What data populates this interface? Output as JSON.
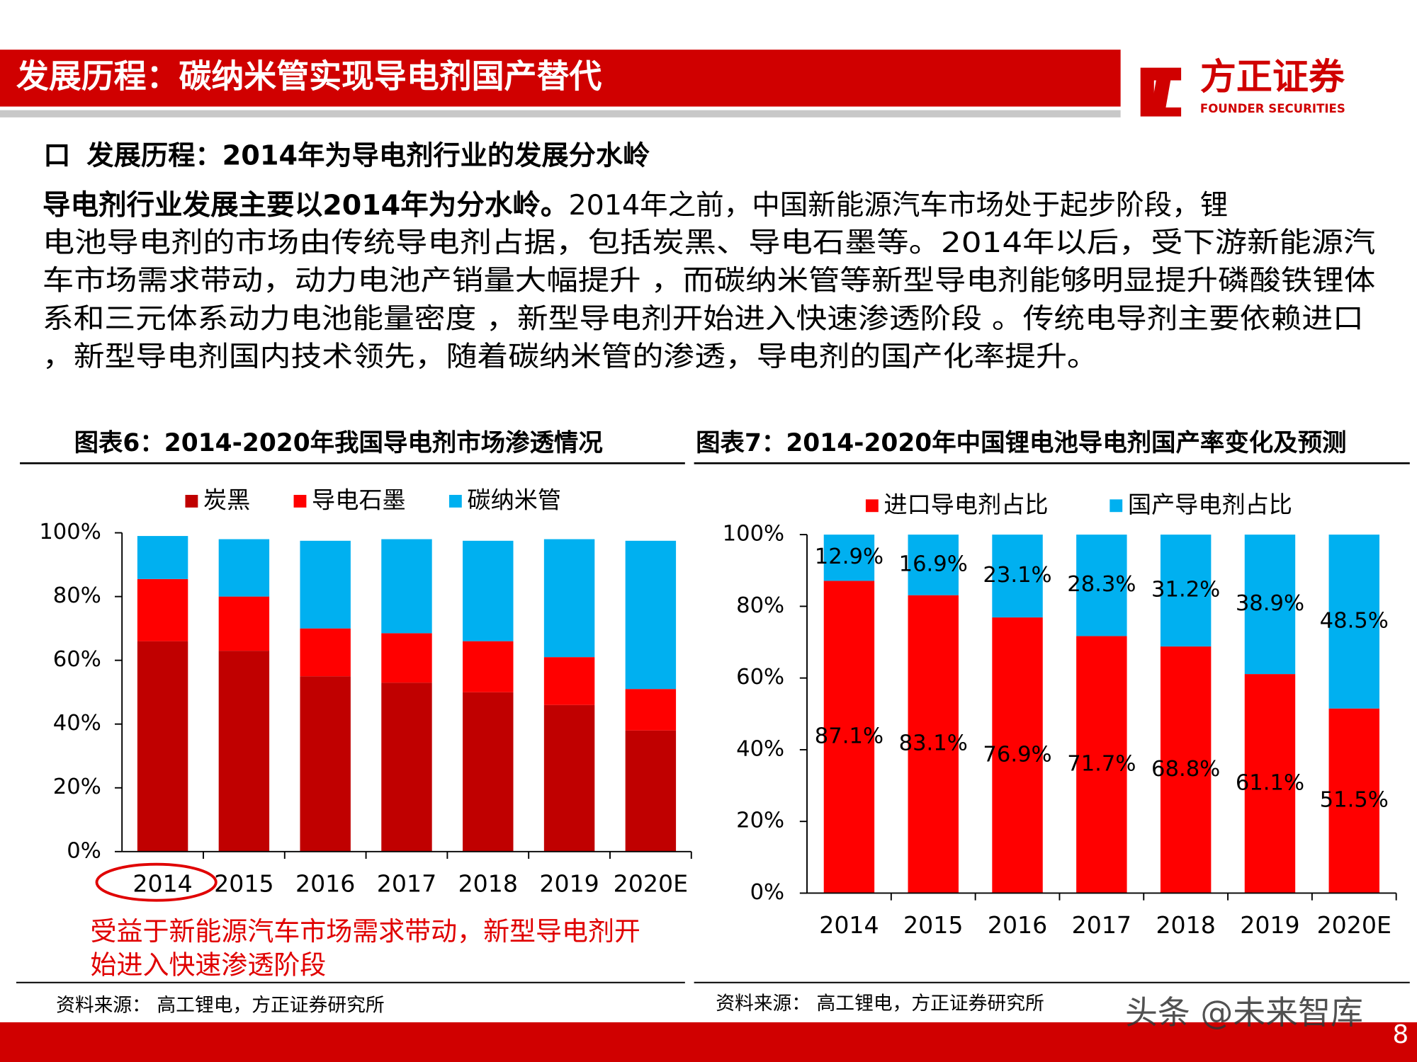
{
  "header": {
    "title": "发展历程：碳纳米管实现导电剂国产替代",
    "logo_cn": "方正证券",
    "logo_en": "FOUNDER SECURITIES"
  },
  "section": {
    "marker": "口",
    "heading": "发展历程：2014年为导电剂行业的发展分水岭"
  },
  "body": {
    "lead": "导电剂行业发展主要以2014年为分水岭。",
    "lines": [
      "2014年之前，中国新能源汽车市场处于起步阶段，锂",
      "电池导电剂的市场由传统导电剂占据，包括炭黑、导电石墨等。2014年以后，受下游新能源汽",
      "车市场需求带动，动力电池产销量大幅提升 ，而碳纳米管等新型导电剂能够明显提升磷酸铁锂体",
      "系和三元体系动力电池能量密度 ，新型导电剂开始进入快速渗透阶段 。传统电导剂主要依赖进口",
      "，新型导电剂国内技术领先，随着碳纳米管的渗透，导电剂的国产化率提升。"
    ]
  },
  "chart_data": [
    {
      "type": "stacked_bar",
      "title": "图表6：2014-2020年我国导电剂市场渗透情况",
      "categories": [
        "2014",
        "2015",
        "2016",
        "2017",
        "2018",
        "2019",
        "2020E"
      ],
      "series": [
        {
          "name": "炭黑",
          "color": "#c00000",
          "values": [
            66,
            63,
            55,
            53,
            50,
            46,
            38
          ]
        },
        {
          "name": "导电石墨",
          "color": "#ff0000",
          "values": [
            19.5,
            17,
            15,
            15.5,
            16,
            15,
            13
          ]
        },
        {
          "name": "碳纳米管",
          "color": "#00b0f0",
          "values": [
            13.5,
            18,
            27.5,
            29.5,
            31.5,
            37,
            46.5
          ]
        }
      ],
      "ylim": [
        0,
        100
      ],
      "yticks": [
        {
          "value": 0,
          "label": "0%"
        },
        {
          "value": 20,
          "label": "20%"
        },
        {
          "value": 40,
          "label": "40%"
        },
        {
          "value": 60,
          "label": "60%"
        },
        {
          "value": 80,
          "label": "80%"
        },
        {
          "value": 100,
          "label": "100%"
        }
      ],
      "annotation": [
        "受益于新能源汽车市场需求带动，新型导电剂开",
        "始进入快速渗透阶段"
      ],
      "source": "资料来源： 高工锂电，方正证券研究所"
    },
    {
      "type": "stacked_bar",
      "title": "图表7：2014-2020年中国锂电池导电剂国产率变化及预测",
      "categories": [
        "2014",
        "2015",
        "2016",
        "2017",
        "2018",
        "2019",
        "2020E"
      ],
      "series": [
        {
          "name": "进口导电剂占比",
          "color": "#ff0000",
          "values": [
            87.1,
            83.1,
            76.9,
            71.7,
            68.8,
            61.1,
            51.5
          ],
          "value_labels": [
            "87.1%",
            "83.1%",
            "76.9%",
            "71.7%",
            "68.8%",
            "61.1%",
            "51.5%"
          ]
        },
        {
          "name": "国产导电剂占比",
          "color": "#00b0f0",
          "values": [
            12.9,
            16.9,
            23.1,
            28.3,
            31.2,
            38.9,
            48.5
          ],
          "value_labels": [
            "12.9%",
            "16.9%",
            "23.1%",
            "28.3%",
            "31.2%",
            "38.9%",
            "48.5%"
          ]
        }
      ],
      "ylim": [
        0,
        100
      ],
      "yticks": [
        {
          "value": 0,
          "label": "0%"
        },
        {
          "value": 20,
          "label": "20%"
        },
        {
          "value": 40,
          "label": "40%"
        },
        {
          "value": 60,
          "label": "60%"
        },
        {
          "value": 80,
          "label": "80%"
        },
        {
          "value": 100,
          "label": "100%"
        }
      ],
      "source": "资料来源： 高工锂电，方正证券研究所"
    }
  ],
  "footer": {
    "watermark": "头条 @未来智库",
    "page": "8"
  }
}
